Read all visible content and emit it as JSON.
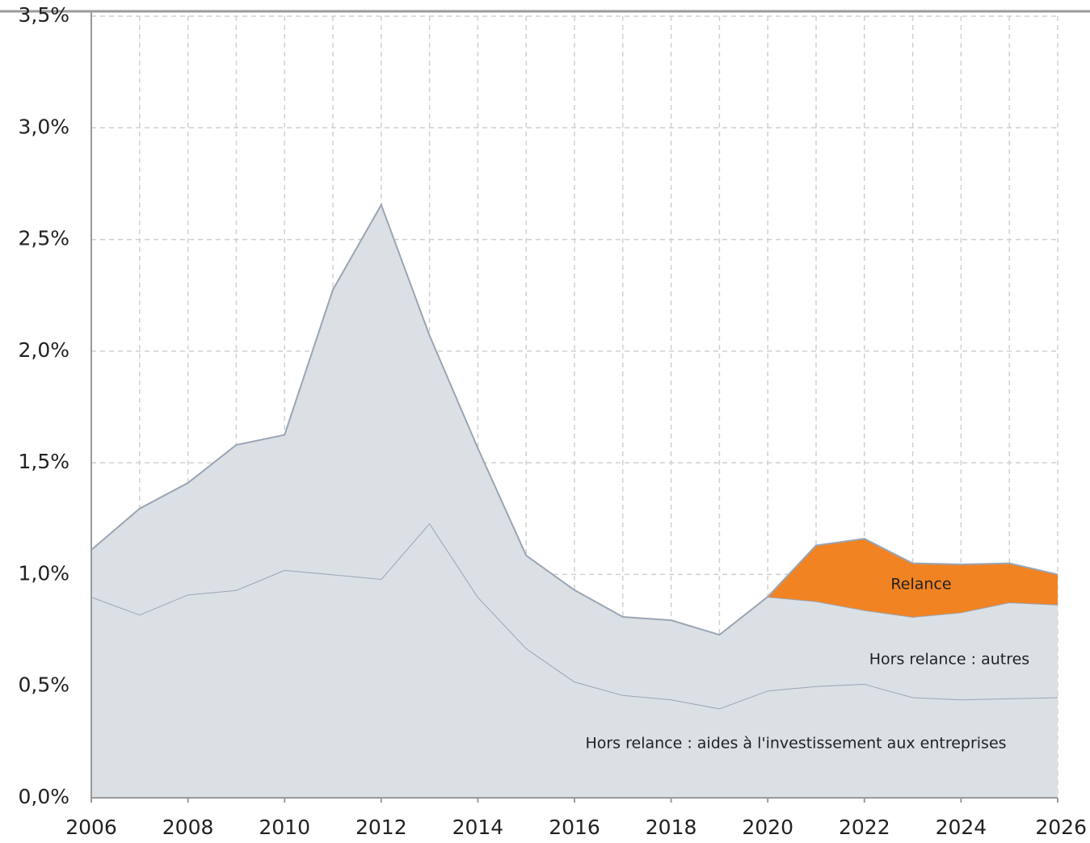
{
  "chart_data": {
    "type": "stacked_area",
    "x": [
      2006,
      2007,
      2008,
      2009,
      2010,
      2011,
      2012,
      2013,
      2014,
      2015,
      2016,
      2017,
      2018,
      2019,
      2020,
      2021,
      2022,
      2023,
      2024,
      2025,
      2026
    ],
    "series": [
      {
        "name": "Hors relance : aides à l'investissement aux entreprises",
        "color": "#dbe0e5",
        "values": [
          0.9,
          0.82,
          0.91,
          0.93,
          1.02,
          1.0,
          0.98,
          1.23,
          0.9,
          0.67,
          0.52,
          0.46,
          0.44,
          0.4,
          0.48,
          0.5,
          0.51,
          0.45,
          0.44,
          0.445,
          0.45
        ]
      },
      {
        "name": "Hors relance : autres",
        "color": "#dbe0e5",
        "values": [
          0.21,
          0.475,
          0.5,
          0.65,
          0.605,
          1.275,
          1.675,
          0.84,
          0.665,
          0.415,
          0.41,
          0.35,
          0.355,
          0.33,
          0.42,
          0.38,
          0.33,
          0.36,
          0.39,
          0.43,
          0.415
        ]
      },
      {
        "name": "Relance",
        "color": "#f28322",
        "values": [
          null,
          null,
          null,
          null,
          null,
          null,
          null,
          null,
          null,
          null,
          null,
          null,
          null,
          null,
          0,
          0.25,
          0.32,
          0.24,
          0.215,
          0.175,
          0.135
        ]
      }
    ],
    "xlim": [
      2006,
      2026
    ],
    "xticks": [
      2006,
      2008,
      2010,
      2012,
      2014,
      2016,
      2018,
      2020,
      2022,
      2024,
      2026
    ],
    "ylim": [
      0,
      3.5
    ],
    "yticks": [
      {
        "value": 0,
        "label": "0,0%"
      },
      {
        "value": 0.5,
        "label": "0,5%"
      },
      {
        "value": 1,
        "label": "1,0%"
      },
      {
        "value": 1.5,
        "label": "1,5%"
      },
      {
        "value": 2,
        "label": "2,0%"
      },
      {
        "value": 2.5,
        "label": "2,5%"
      },
      {
        "value": 3,
        "label": "3,0%"
      },
      {
        "value": 3.5,
        "label": "3,5%"
      }
    ],
    "grid": true
  }
}
